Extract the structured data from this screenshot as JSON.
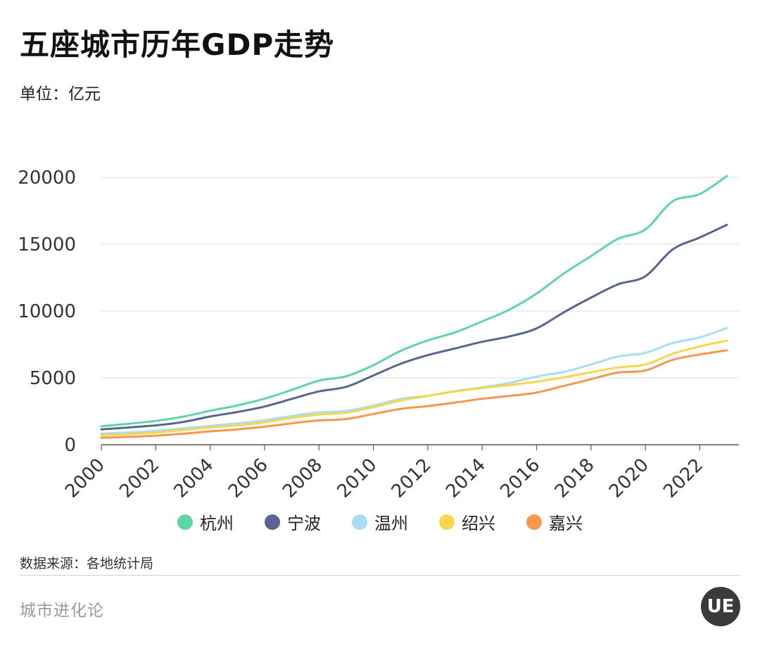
{
  "header": {
    "title": "五座城市历年GDP走势",
    "unit": "单位：亿元"
  },
  "colors": {
    "杭州": "#5dd6a6",
    "宁波": "#566691",
    "温州": "#a9ddf7",
    "绍兴": "#f8d64b",
    "嘉兴": "#f7974e"
  },
  "chart_data": {
    "type": "line",
    "title": "五座城市历年GDP走势",
    "ylabel": "单位：亿元",
    "xlabel": "",
    "x": [
      2000,
      2001,
      2002,
      2003,
      2004,
      2005,
      2006,
      2007,
      2008,
      2009,
      2010,
      2011,
      2012,
      2013,
      2014,
      2015,
      2016,
      2017,
      2018,
      2019,
      2020,
      2021,
      2022,
      2023
    ],
    "xticks": [
      "2000",
      "2002",
      "2004",
      "2006",
      "2008",
      "2010",
      "2012",
      "2014",
      "2016",
      "2018",
      "2020",
      "2022"
    ],
    "yticks": [
      "0",
      "5000",
      "10000",
      "15000",
      "20000"
    ],
    "ylim": [
      0,
      22000
    ],
    "grid": true,
    "legend_position": "bottom",
    "series": [
      {
        "name": "杭州",
        "color": "#5dd6a6",
        "values": [
          1380,
          1570,
          1780,
          2100,
          2540,
          2940,
          3440,
          4100,
          4790,
          5120,
          5950,
          7020,
          7800,
          8400,
          9220,
          10100,
          11300,
          12800,
          14100,
          15400,
          16100,
          18200,
          18750,
          20100
        ]
      },
      {
        "name": "宁波",
        "color": "#566691",
        "values": [
          1150,
          1290,
          1450,
          1700,
          2110,
          2450,
          2860,
          3430,
          3990,
          4330,
          5180,
          6050,
          6700,
          7200,
          7700,
          8100,
          8700,
          9900,
          11000,
          12000,
          12600,
          14600,
          15500,
          16450
        ]
      },
      {
        "name": "温州",
        "color": "#a9ddf7",
        "values": [
          830,
          920,
          1040,
          1220,
          1410,
          1600,
          1830,
          2150,
          2420,
          2530,
          2930,
          3420,
          3670,
          4000,
          4300,
          4620,
          5100,
          5450,
          6000,
          6600,
          6870,
          7600,
          8030,
          8730
        ]
      },
      {
        "name": "绍兴",
        "color": "#f8d64b",
        "values": [
          700,
          790,
          910,
          1100,
          1300,
          1450,
          1680,
          2000,
          2250,
          2400,
          2800,
          3300,
          3650,
          3980,
          4250,
          4470,
          4710,
          5040,
          5420,
          5780,
          6000,
          6800,
          7350,
          7790
        ]
      },
      {
        "name": "嘉兴",
        "color": "#f7974e",
        "values": [
          520,
          590,
          680,
          820,
          1000,
          1150,
          1350,
          1600,
          1820,
          1920,
          2300,
          2680,
          2890,
          3150,
          3440,
          3650,
          3900,
          4400,
          4900,
          5400,
          5550,
          6350,
          6750,
          7060
        ]
      }
    ]
  },
  "footer": {
    "source": "数据来源：各地统计局",
    "brand": "城市进化论",
    "logo_text": "UE"
  }
}
